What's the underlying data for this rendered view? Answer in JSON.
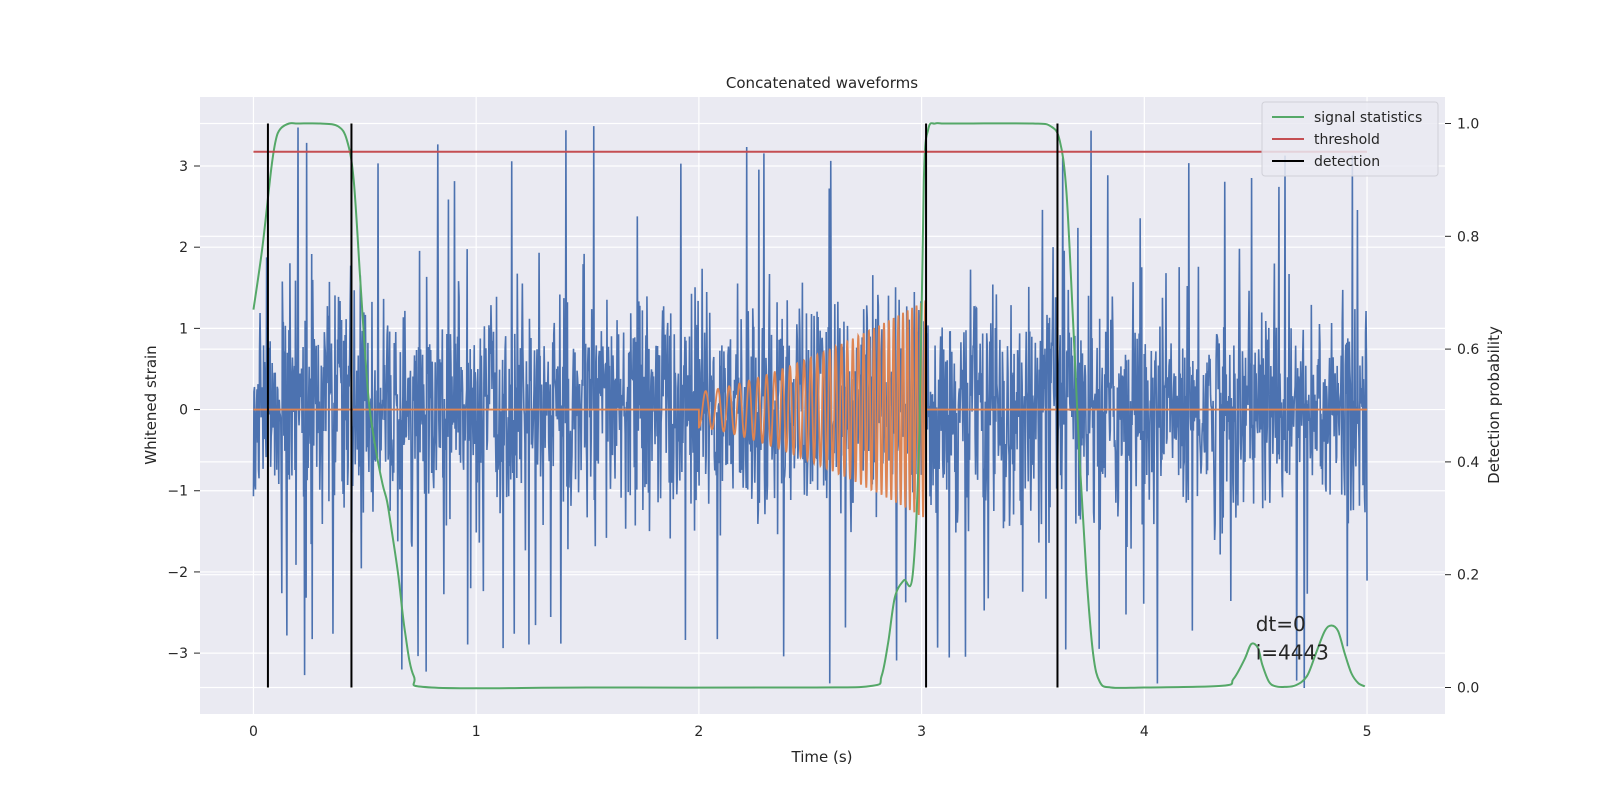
{
  "chart_data": {
    "type": "line",
    "title": "Concatenated waveforms",
    "xlabel": "Time (s)",
    "ylabel_left": "Whitened strain",
    "ylabel_right": "Detection probability",
    "xlim": [
      -0.24,
      5.35
    ],
    "ylim_left": [
      -3.75,
      3.85
    ],
    "ylim_right": [
      -0.047,
      1.047
    ],
    "xticks": [
      0,
      1,
      2,
      3,
      4,
      5
    ],
    "yticks_left": [
      -3,
      -2,
      -1,
      0,
      1,
      2,
      3
    ],
    "yticks_right": [
      0.0,
      0.2,
      0.4,
      0.6,
      0.8,
      1.0
    ],
    "ytick_labels_left": [
      "−3",
      "−2",
      "−1",
      "0",
      "1",
      "2",
      "3"
    ],
    "ytick_labels_right": [
      "0.0",
      "0.2",
      "0.4",
      "0.6",
      "0.8",
      "1.0"
    ],
    "grid": true,
    "legend_position": "top-right",
    "colors": {
      "strain": "#4c72b0",
      "injected": "#dd8452",
      "signal_statistics": "#55a868",
      "threshold": "#c44e52",
      "detection": "#000000",
      "background": "#eaeaf2",
      "grid": "#ffffff"
    },
    "series": [
      {
        "name": "",
        "axis": "left",
        "color": "#4c72b0",
        "description_type": "noise",
        "x_range": [
          0,
          5
        ],
        "sample_count": 2200,
        "typical_amplitude": 0.7,
        "peak_amplitude": 3.5
      },
      {
        "name": "",
        "axis": "left",
        "color": "#dd8452",
        "segments": [
          {
            "x": [
              0,
              2.0
            ],
            "y": [
              0,
              0
            ]
          },
          {
            "chirp": {
              "start": 2.0,
              "end": 3.02,
              "amp_start": 0.22,
              "amp_end": 1.35,
              "freq_start": 16,
              "freq_end": 52
            }
          },
          {
            "x": [
              3.02,
              5.0
            ],
            "y": [
              0,
              0
            ]
          }
        ]
      },
      {
        "name": "signal statistics",
        "axis": "right",
        "color": "#55a868",
        "x": [
          0.0,
          0.04,
          0.08,
          0.1,
          0.12,
          0.16,
          0.2,
          0.3,
          0.38,
          0.42,
          0.45,
          0.48,
          0.5,
          0.52,
          0.55,
          0.58,
          0.6,
          0.62,
          0.65,
          0.68,
          0.72,
          0.8,
          1.5,
          2.5,
          2.78,
          2.82,
          2.85,
          2.88,
          2.92,
          2.96,
          2.99,
          3.01,
          3.03,
          3.06,
          3.1,
          3.2,
          3.5,
          3.58,
          3.62,
          3.65,
          3.68,
          3.71,
          3.74,
          3.77,
          3.8,
          3.85,
          4.0,
          4.35,
          4.4,
          4.45,
          4.48,
          4.51,
          4.53,
          4.56,
          4.59,
          4.63,
          4.68,
          4.73,
          4.77,
          4.81,
          4.84,
          4.87,
          4.9,
          4.93,
          4.96,
          4.99
        ],
        "y": [
          0.67,
          0.78,
          0.92,
          0.97,
          0.99,
          1.0,
          1.0,
          1.0,
          0.995,
          0.97,
          0.9,
          0.72,
          0.6,
          0.5,
          0.42,
          0.36,
          0.33,
          0.28,
          0.2,
          0.1,
          0.02,
          0.0,
          0.0,
          0.0,
          0.003,
          0.02,
          0.08,
          0.16,
          0.19,
          0.2,
          0.45,
          0.9,
          0.99,
          1.0,
          1.0,
          1.0,
          1.0,
          0.995,
          0.97,
          0.88,
          0.65,
          0.4,
          0.2,
          0.06,
          0.01,
          0.0,
          0.0,
          0.003,
          0.015,
          0.05,
          0.077,
          0.07,
          0.04,
          0.01,
          0.002,
          0.001,
          0.004,
          0.02,
          0.06,
          0.1,
          0.11,
          0.1,
          0.06,
          0.025,
          0.008,
          0.002
        ]
      },
      {
        "name": "threshold",
        "axis": "right",
        "color": "#c44e52",
        "x": [
          0,
          5
        ],
        "y": [
          0.95,
          0.95
        ]
      },
      {
        "name": "detection",
        "axis": "right",
        "color": "#000000",
        "type": "vlines",
        "x": [
          0.065,
          0.44,
          3.02,
          3.61
        ],
        "ymin": 0.0,
        "ymax": 1.0
      }
    ],
    "annotations": [
      {
        "text": "dt=0",
        "x": 4.5,
        "y": 0.1
      },
      {
        "text": "i=4443",
        "x": 4.5,
        "y": 0.05
      }
    ],
    "legend": [
      {
        "label": "signal statistics",
        "color": "#55a868"
      },
      {
        "label": "threshold",
        "color": "#c44e52"
      },
      {
        "label": "detection",
        "color": "#000000"
      }
    ]
  }
}
